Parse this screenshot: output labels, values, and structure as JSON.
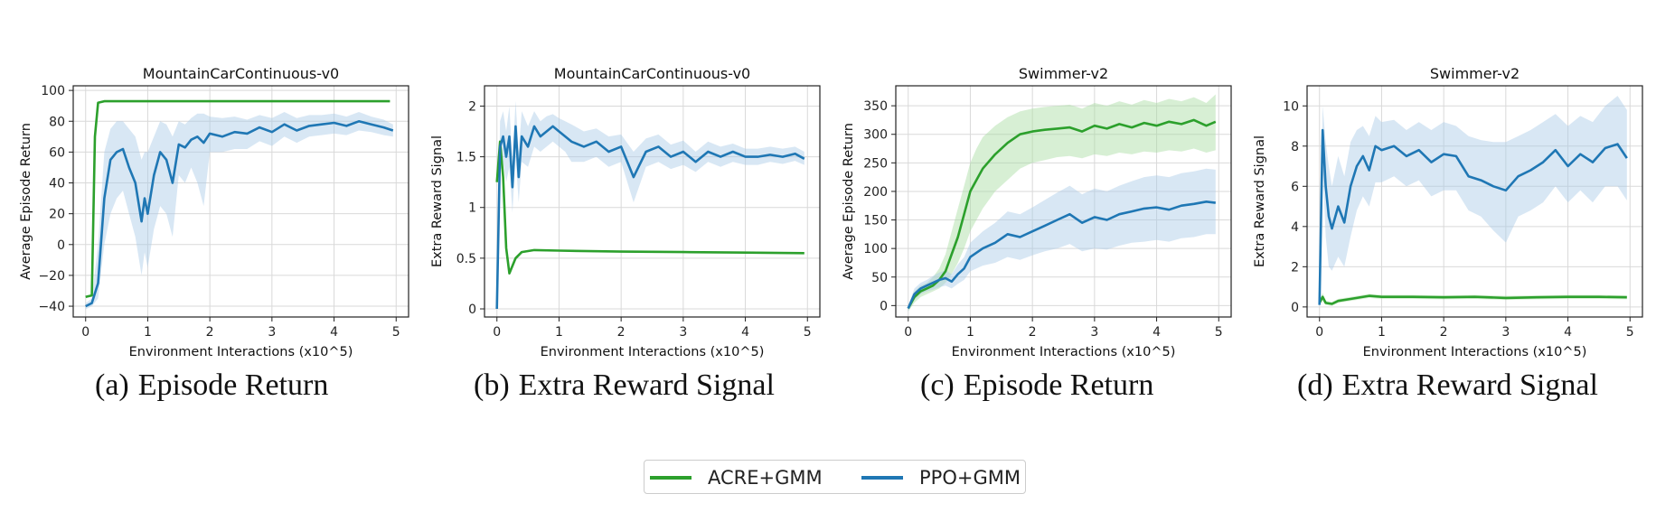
{
  "colors": {
    "acre": "#2ca02c",
    "ppo": "#1f77b4",
    "acre_band": "#a6dba0",
    "ppo_band": "#a9c9e6",
    "grid": "#d9d9d9"
  },
  "legend": [
    {
      "label": "ACRE+GMM",
      "color": "#2ca02c"
    },
    {
      "label": "PPO+GMM",
      "color": "#1f77b4"
    }
  ],
  "captions": [
    {
      "label": "(a)",
      "text": "Episode Return"
    },
    {
      "label": "(b)",
      "text": "Extra Reward Signal"
    },
    {
      "label": "(c)",
      "text": "Episode Return"
    },
    {
      "label": "(d)",
      "text": "Extra Reward Signal"
    }
  ],
  "chart_data": [
    {
      "type": "line",
      "title": "MountainCarContinuous-v0",
      "xlabel": "Environment Interactions (x10^5)",
      "ylabel": "Average Episode Return",
      "xlim": [
        -0.2,
        5.2
      ],
      "ylim": [
        -47,
        103
      ],
      "xticks": [
        0,
        1,
        2,
        3,
        4,
        5
      ],
      "yticks": [
        -40,
        -20,
        0,
        20,
        40,
        60,
        80,
        100
      ],
      "grid": true,
      "series": [
        {
          "name": "ACRE+GMM",
          "color": "#2ca02c",
          "x": [
            0.0,
            0.1,
            0.15,
            0.2,
            0.3,
            0.5,
            1,
            2,
            3,
            4,
            4.9
          ],
          "y": [
            -34,
            -33,
            70,
            92,
            93,
            93,
            93,
            93,
            93,
            93,
            93
          ],
          "lo": [
            -34,
            -33,
            70,
            92,
            93,
            93,
            93,
            93,
            93,
            93,
            93
          ],
          "hi": [
            -34,
            -33,
            70,
            92,
            93,
            93,
            93,
            93,
            93,
            93,
            93
          ]
        },
        {
          "name": "PPO+GMM",
          "color": "#1f77b4",
          "x": [
            0.0,
            0.1,
            0.2,
            0.3,
            0.4,
            0.5,
            0.6,
            0.7,
            0.8,
            0.9,
            0.95,
            1.0,
            1.1,
            1.2,
            1.3,
            1.4,
            1.5,
            1.6,
            1.7,
            1.8,
            1.9,
            2.0,
            2.2,
            2.4,
            2.6,
            2.8,
            3.0,
            3.2,
            3.4,
            3.6,
            3.8,
            4.0,
            4.2,
            4.4,
            4.6,
            4.8,
            4.95
          ],
          "y": [
            -40,
            -38,
            -25,
            30,
            55,
            60,
            62,
            50,
            40,
            15,
            30,
            20,
            45,
            60,
            55,
            40,
            65,
            63,
            68,
            70,
            66,
            72,
            70,
            73,
            72,
            76,
            73,
            78,
            74,
            77,
            78,
            79,
            77,
            80,
            78,
            76,
            74
          ],
          "lo": [
            -42,
            -40,
            -35,
            0,
            20,
            30,
            35,
            20,
            5,
            -20,
            -5,
            -15,
            10,
            25,
            20,
            5,
            45,
            40,
            50,
            40,
            25,
            60,
            60,
            62,
            62,
            67,
            64,
            70,
            66,
            70,
            71,
            72,
            71,
            74,
            73,
            71,
            70
          ],
          "hi": [
            -38,
            -35,
            0,
            60,
            75,
            80,
            80,
            75,
            70,
            55,
            60,
            60,
            70,
            80,
            78,
            70,
            80,
            78,
            82,
            85,
            85,
            83,
            82,
            83,
            81,
            84,
            82,
            86,
            82,
            84,
            84,
            85,
            83,
            86,
            83,
            81,
            78
          ]
        }
      ]
    },
    {
      "type": "line",
      "title": "MountainCarContinuous-v0",
      "xlabel": "Environment Interactions (x10^5)",
      "ylabel": "Extra Reward Signal",
      "xlim": [
        -0.2,
        5.2
      ],
      "ylim": [
        -0.08,
        2.2
      ],
      "xticks": [
        0,
        1,
        2,
        3,
        4,
        5
      ],
      "yticks": [
        0.0,
        0.5,
        1.0,
        1.5,
        2.0
      ],
      "grid": true,
      "series": [
        {
          "name": "ACRE+GMM",
          "color": "#2ca02c",
          "x": [
            0.0,
            0.05,
            0.1,
            0.15,
            0.2,
            0.3,
            0.4,
            0.6,
            1,
            2,
            3,
            4,
            4.95
          ],
          "y": [
            1.25,
            1.65,
            1.3,
            0.6,
            0.35,
            0.5,
            0.56,
            0.58,
            0.575,
            0.565,
            0.56,
            0.555,
            0.55
          ],
          "lo": [
            1.2,
            1.6,
            1.25,
            0.55,
            0.33,
            0.48,
            0.55,
            0.57,
            0.57,
            0.56,
            0.555,
            0.55,
            0.545
          ],
          "hi": [
            1.3,
            1.7,
            1.35,
            0.65,
            0.38,
            0.52,
            0.57,
            0.59,
            0.58,
            0.57,
            0.565,
            0.56,
            0.555
          ]
        },
        {
          "name": "PPO+GMM",
          "color": "#1f77b4",
          "x": [
            0.0,
            0.05,
            0.1,
            0.15,
            0.2,
            0.25,
            0.3,
            0.35,
            0.4,
            0.5,
            0.6,
            0.7,
            0.8,
            0.9,
            1.0,
            1.1,
            1.2,
            1.4,
            1.6,
            1.8,
            2.0,
            2.2,
            2.4,
            2.6,
            2.8,
            3.0,
            3.2,
            3.4,
            3.6,
            3.8,
            4.0,
            4.2,
            4.4,
            4.6,
            4.8,
            4.95
          ],
          "y": [
            0.0,
            1.6,
            1.7,
            1.5,
            1.7,
            1.2,
            1.8,
            1.3,
            1.7,
            1.6,
            1.8,
            1.7,
            1.75,
            1.8,
            1.75,
            1.7,
            1.65,
            1.6,
            1.65,
            1.55,
            1.6,
            1.3,
            1.55,
            1.6,
            1.5,
            1.55,
            1.45,
            1.55,
            1.5,
            1.55,
            1.5,
            1.5,
            1.52,
            1.5,
            1.53,
            1.48
          ],
          "lo": [
            0.0,
            1.35,
            1.45,
            1.25,
            1.4,
            0.95,
            1.5,
            1.05,
            1.45,
            1.4,
            1.6,
            1.55,
            1.6,
            1.65,
            1.6,
            1.55,
            1.45,
            1.45,
            1.5,
            1.4,
            1.45,
            1.05,
            1.4,
            1.45,
            1.38,
            1.42,
            1.35,
            1.45,
            1.4,
            1.45,
            1.42,
            1.42,
            1.45,
            1.43,
            1.46,
            1.42
          ],
          "hi": [
            0.0,
            1.85,
            1.95,
            1.75,
            2.0,
            1.45,
            2.05,
            1.55,
            1.95,
            1.8,
            1.95,
            1.85,
            1.9,
            1.92,
            1.88,
            1.85,
            1.82,
            1.75,
            1.78,
            1.7,
            1.72,
            1.55,
            1.68,
            1.72,
            1.62,
            1.66,
            1.55,
            1.65,
            1.6,
            1.63,
            1.58,
            1.58,
            1.6,
            1.58,
            1.6,
            1.55
          ]
        }
      ]
    },
    {
      "type": "line",
      "title": "Swimmer-v2",
      "xlabel": "Environment Interactions (x10^5)",
      "ylabel": "Average Episode Return",
      "xlim": [
        -0.2,
        5.2
      ],
      "ylim": [
        -20,
        385
      ],
      "xticks": [
        0,
        1,
        2,
        3,
        4,
        5
      ],
      "yticks": [
        0,
        50,
        100,
        150,
        200,
        250,
        300,
        350
      ],
      "grid": true,
      "series": [
        {
          "name": "ACRE+GMM",
          "color": "#2ca02c",
          "x": [
            0.0,
            0.1,
            0.2,
            0.3,
            0.4,
            0.5,
            0.6,
            0.7,
            0.8,
            0.9,
            1.0,
            1.1,
            1.2,
            1.4,
            1.6,
            1.8,
            2.0,
            2.2,
            2.4,
            2.6,
            2.8,
            3.0,
            3.2,
            3.4,
            3.6,
            3.8,
            4.0,
            4.2,
            4.4,
            4.6,
            4.8,
            4.95
          ],
          "y": [
            -5,
            15,
            25,
            30,
            35,
            45,
            60,
            90,
            120,
            160,
            200,
            220,
            240,
            265,
            285,
            300,
            305,
            308,
            310,
            312,
            305,
            315,
            310,
            318,
            312,
            320,
            315,
            322,
            318,
            325,
            315,
            322
          ],
          "lo": [
            -10,
            5,
            15,
            20,
            25,
            30,
            40,
            55,
            75,
            100,
            130,
            150,
            170,
            200,
            220,
            240,
            250,
            255,
            260,
            262,
            258,
            265,
            262,
            268,
            265,
            270,
            268,
            272,
            270,
            275,
            268,
            272
          ],
          "hi": [
            0,
            25,
            35,
            40,
            50,
            65,
            90,
            130,
            170,
            210,
            250,
            275,
            295,
            315,
            330,
            340,
            345,
            348,
            350,
            352,
            345,
            355,
            350,
            358,
            352,
            360,
            355,
            362,
            358,
            365,
            355,
            370
          ]
        },
        {
          "name": "PPO+GMM",
          "color": "#1f77b4",
          "x": [
            0.0,
            0.1,
            0.2,
            0.3,
            0.4,
            0.5,
            0.6,
            0.7,
            0.8,
            0.9,
            1.0,
            1.2,
            1.4,
            1.6,
            1.8,
            2.0,
            2.2,
            2.4,
            2.6,
            2.8,
            3.0,
            3.2,
            3.4,
            3.6,
            3.8,
            4.0,
            4.2,
            4.4,
            4.6,
            4.8,
            4.95
          ],
          "y": [
            -5,
            20,
            30,
            35,
            40,
            45,
            48,
            42,
            55,
            65,
            85,
            100,
            110,
            125,
            120,
            130,
            140,
            150,
            160,
            145,
            155,
            150,
            160,
            165,
            170,
            172,
            168,
            175,
            178,
            182,
            180
          ],
          "lo": [
            -10,
            10,
            20,
            25,
            28,
            32,
            35,
            30,
            38,
            45,
            60,
            70,
            75,
            85,
            80,
            88,
            95,
            100,
            108,
            95,
            100,
            98,
            105,
            110,
            112,
            115,
            112,
            118,
            120,
            125,
            125
          ],
          "hi": [
            0,
            30,
            40,
            45,
            52,
            58,
            62,
            55,
            72,
            85,
            110,
            130,
            145,
            165,
            160,
            172,
            185,
            198,
            210,
            195,
            205,
            200,
            210,
            218,
            225,
            228,
            225,
            232,
            235,
            240,
            238
          ]
        }
      ]
    },
    {
      "type": "line",
      "title": "Swimmer-v2",
      "xlabel": "Environment Interactions (x10^5)",
      "ylabel": "Extra Reward Signal",
      "xlim": [
        -0.2,
        5.2
      ],
      "ylim": [
        -0.5,
        11
      ],
      "xticks": [
        0,
        1,
        2,
        3,
        4,
        5
      ],
      "yticks": [
        0,
        2,
        4,
        6,
        8,
        10
      ],
      "grid": true,
      "series": [
        {
          "name": "ACRE+GMM",
          "color": "#2ca02c",
          "x": [
            0.0,
            0.05,
            0.1,
            0.2,
            0.3,
            0.5,
            0.8,
            1.0,
            1.5,
            2.0,
            2.5,
            3.0,
            3.5,
            4.0,
            4.5,
            4.95
          ],
          "y": [
            0.2,
            0.5,
            0.2,
            0.15,
            0.3,
            0.4,
            0.55,
            0.5,
            0.5,
            0.48,
            0.5,
            0.45,
            0.48,
            0.5,
            0.5,
            0.48
          ],
          "lo": [
            0.1,
            0.3,
            0.1,
            0.05,
            0.2,
            0.3,
            0.45,
            0.4,
            0.4,
            0.38,
            0.4,
            0.35,
            0.38,
            0.4,
            0.4,
            0.38
          ],
          "hi": [
            0.3,
            0.7,
            0.3,
            0.25,
            0.4,
            0.5,
            0.65,
            0.6,
            0.6,
            0.58,
            0.6,
            0.55,
            0.58,
            0.6,
            0.6,
            0.58
          ]
        },
        {
          "name": "PPO+GMM",
          "color": "#1f77b4",
          "x": [
            0.0,
            0.05,
            0.1,
            0.15,
            0.2,
            0.3,
            0.4,
            0.5,
            0.6,
            0.7,
            0.8,
            0.9,
            1.0,
            1.2,
            1.4,
            1.6,
            1.8,
            2.0,
            2.2,
            2.4,
            2.6,
            2.8,
            3.0,
            3.2,
            3.4,
            3.6,
            3.8,
            4.0,
            4.2,
            4.4,
            4.6,
            4.8,
            4.95
          ],
          "y": [
            0.1,
            8.8,
            6.0,
            4.5,
            3.9,
            5.0,
            4.2,
            6.0,
            7.0,
            7.5,
            6.8,
            8.0,
            7.8,
            8.0,
            7.5,
            7.8,
            7.2,
            7.6,
            7.5,
            6.5,
            6.3,
            6.0,
            5.8,
            6.5,
            6.8,
            7.2,
            7.8,
            7.0,
            7.6,
            7.2,
            7.9,
            8.1,
            7.4
          ],
          "lo": [
            0.1,
            7.0,
            3.5,
            2.0,
            1.8,
            2.5,
            2.0,
            3.5,
            4.8,
            5.5,
            5.0,
            6.2,
            6.2,
            6.5,
            6.0,
            6.3,
            5.5,
            5.8,
            5.8,
            4.8,
            4.5,
            3.8,
            3.2,
            4.5,
            4.8,
            5.2,
            6.0,
            5.2,
            5.8,
            5.2,
            6.0,
            6.0,
            5.3
          ],
          "hi": [
            0.1,
            10.0,
            8.2,
            7.0,
            6.0,
            7.5,
            6.5,
            8.2,
            8.8,
            9.0,
            8.5,
            9.5,
            9.2,
            9.3,
            8.8,
            9.2,
            8.8,
            9.2,
            9.0,
            8.5,
            8.3,
            8.2,
            8.2,
            8.5,
            8.8,
            9.2,
            9.6,
            9.0,
            9.5,
            9.2,
            10.0,
            10.5,
            9.8
          ]
        }
      ]
    }
  ]
}
